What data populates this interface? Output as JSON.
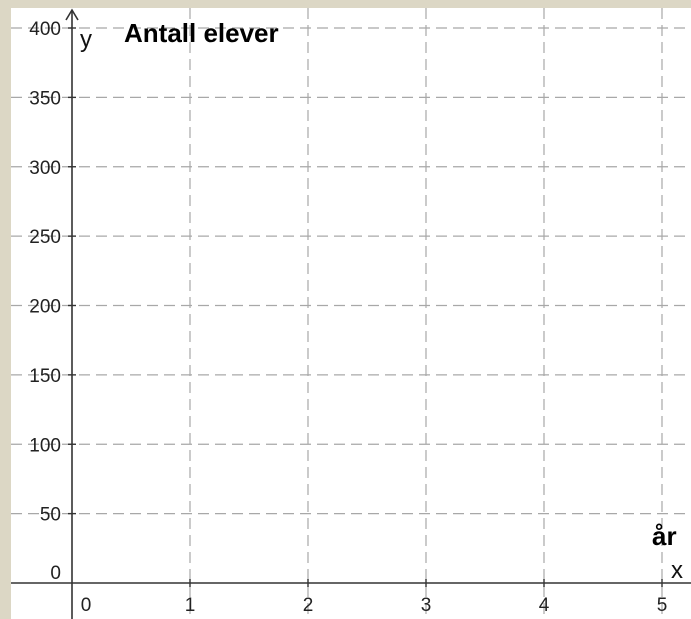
{
  "chart_data": {
    "type": "line",
    "title": "Antall elever",
    "xlabel": "år",
    "ylabel": "",
    "x_axis_letter": "x",
    "y_axis_letter": "y",
    "xlim": [
      0,
      5.2
    ],
    "ylim": [
      0,
      400
    ],
    "x_ticks": [
      0,
      1,
      2,
      3,
      4,
      5
    ],
    "y_ticks": [
      0,
      50,
      100,
      150,
      200,
      250,
      300,
      350,
      400
    ],
    "grid": true,
    "series": []
  },
  "colors": {
    "background": "#dcd7c5",
    "plot_area": "#ffffff",
    "grid": "#a8a8a8",
    "axis": "#333333"
  }
}
